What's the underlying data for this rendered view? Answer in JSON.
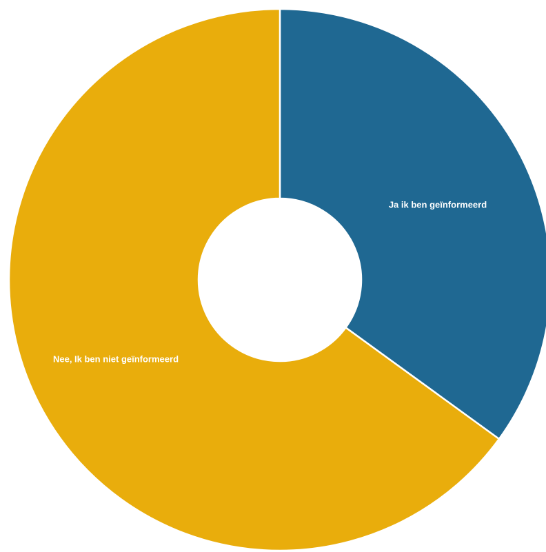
{
  "chart_data": {
    "type": "pie",
    "donut": true,
    "title": "",
    "slices": [
      {
        "label": "Ja ik ben geïnformeerd",
        "value": 35,
        "color": "#1f6892"
      },
      {
        "label": "Nee, Ik ben niet geïnformeerd",
        "value": 65,
        "color": "#e9ad0c"
      }
    ],
    "legend": "none",
    "start_direction": "top",
    "order": "clockwise"
  }
}
